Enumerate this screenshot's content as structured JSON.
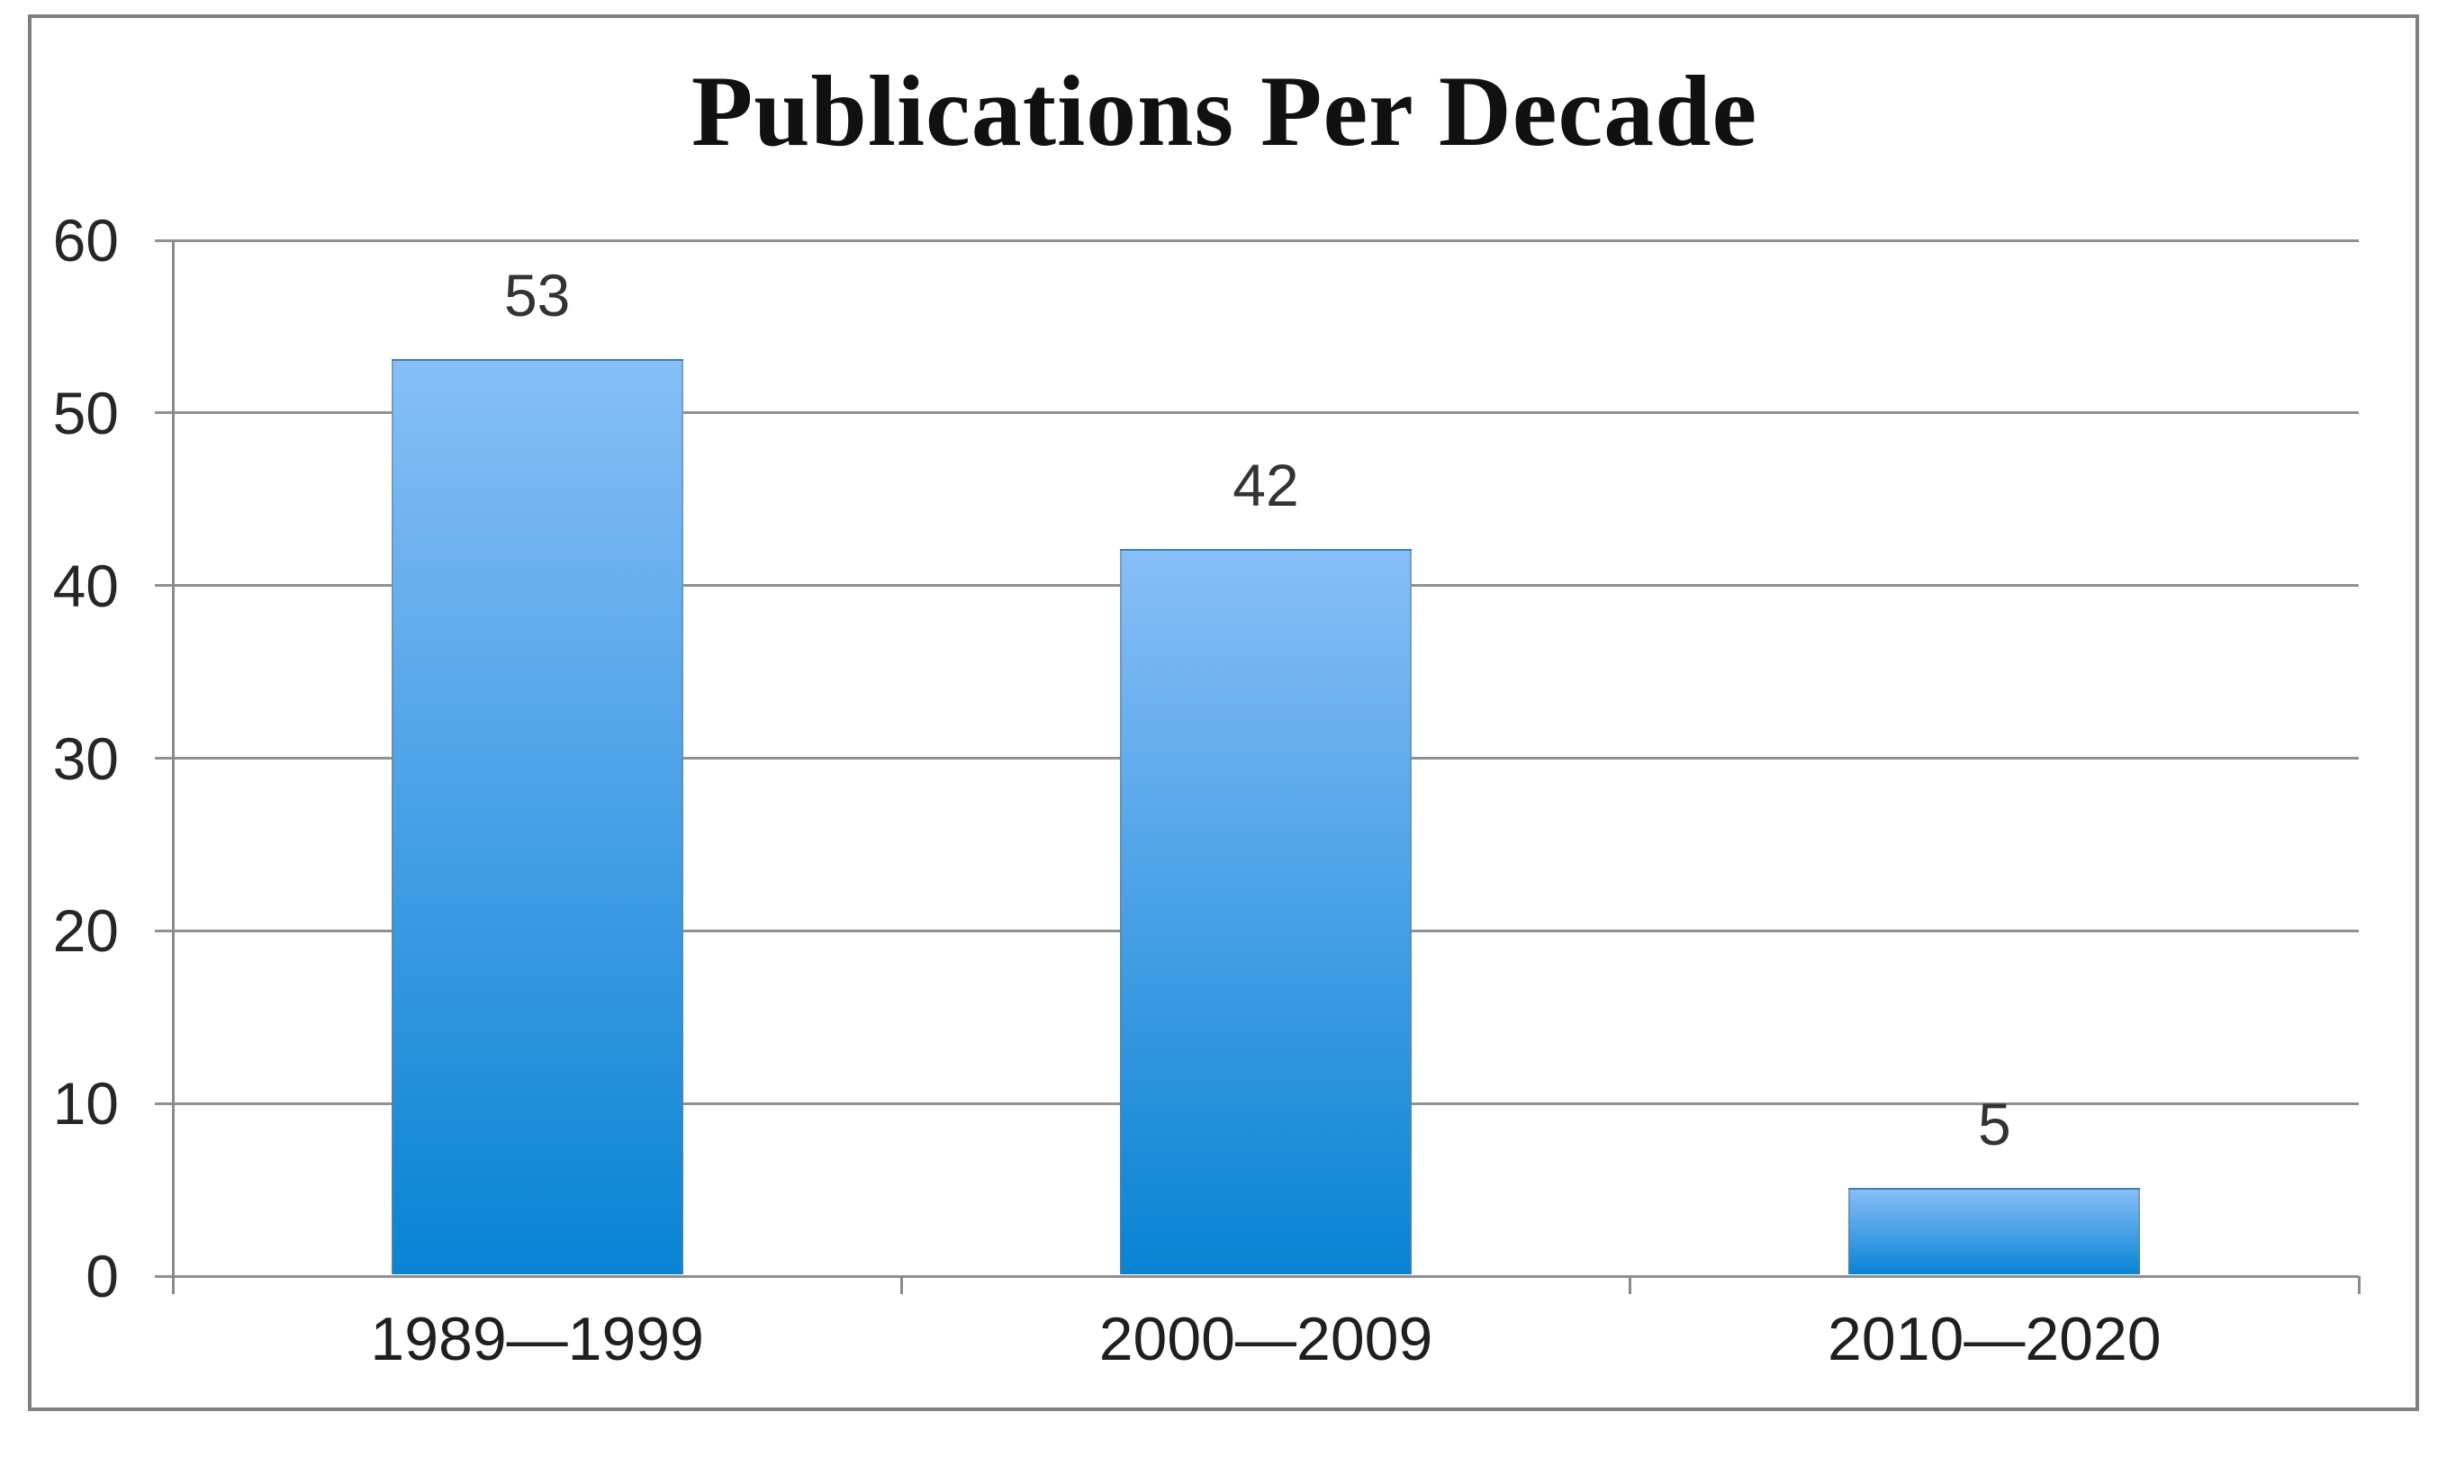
{
  "chart_data": {
    "type": "bar",
    "title": "Publications Per Decade",
    "categories": [
      "1989—1999",
      "2000—2009",
      "2010—2020"
    ],
    "values": [
      53,
      42,
      5
    ],
    "data_labels": [
      "53",
      "42",
      "5"
    ],
    "xlabel": "",
    "ylabel": "",
    "ylim": [
      0,
      60
    ],
    "yticks": [
      0,
      10,
      20,
      30,
      40,
      50,
      60
    ],
    "grid": true,
    "legend": false,
    "colors": {
      "bar_gradient_top": "#87BEF7",
      "bar_gradient_bottom": "#0883D4",
      "grid_line": "#909090",
      "axis_line": "#8a8a8a",
      "frame_border": "#7f7f7f",
      "title_text": "#111111",
      "label_text": "#262626"
    }
  }
}
